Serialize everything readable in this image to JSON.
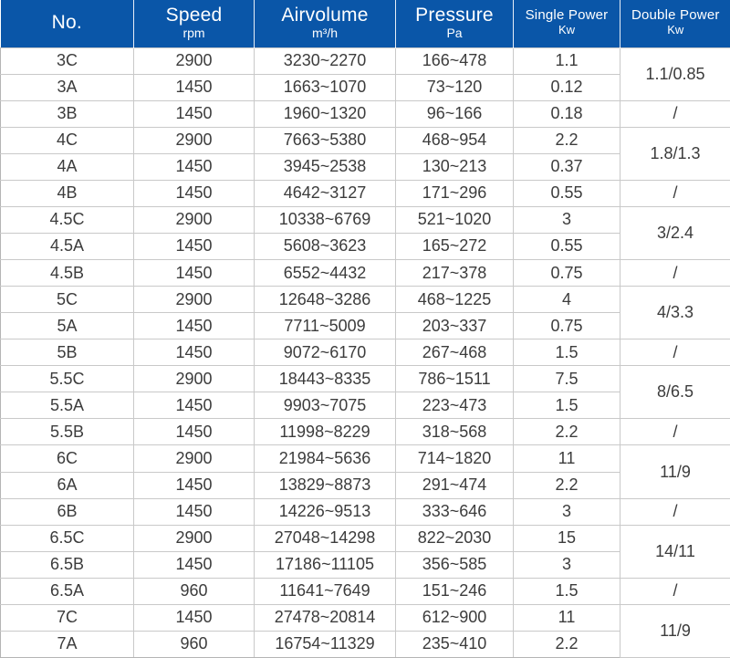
{
  "table": {
    "colors": {
      "header_background": "#0a56a8",
      "header_text": "#ffffff",
      "grid_border": "#c9c9c9",
      "body_text": "#3c3c3c"
    },
    "columns": [
      {
        "label": "No.",
        "sub": ""
      },
      {
        "label": "Speed",
        "sub": "rpm"
      },
      {
        "label": "Airvolume",
        "sub": "m³/h"
      },
      {
        "label": "Pressure",
        "sub": "Pa"
      },
      {
        "label": "Single Power",
        "sub": "Kw"
      },
      {
        "label": "Double Power",
        "sub": "Kw"
      }
    ],
    "rows": [
      {
        "no": "3C",
        "speed": "2900",
        "airvolume": "3230~2270",
        "pressure": "166~478",
        "single": "1.1",
        "double": "1.1/0.85",
        "dspan": 2
      },
      {
        "no": "3A",
        "speed": "1450",
        "airvolume": "1663~1070",
        "pressure": "73~120",
        "single": "0.12"
      },
      {
        "no": "3B",
        "speed": "1450",
        "airvolume": "1960~1320",
        "pressure": "96~166",
        "single": "0.18",
        "double": "/",
        "dspan": 1
      },
      {
        "no": "4C",
        "speed": "2900",
        "airvolume": "7663~5380",
        "pressure": "468~954",
        "single": "2.2",
        "double": "1.8/1.3",
        "dspan": 2
      },
      {
        "no": "4A",
        "speed": "1450",
        "airvolume": "3945~2538",
        "pressure": "130~213",
        "single": "0.37"
      },
      {
        "no": "4B",
        "speed": "1450",
        "airvolume": "4642~3127",
        "pressure": "171~296",
        "single": "0.55",
        "double": "/",
        "dspan": 1
      },
      {
        "no": "4.5C",
        "speed": "2900",
        "airvolume": "10338~6769",
        "pressure": "521~1020",
        "single": "3",
        "double": "3/2.4",
        "dspan": 2
      },
      {
        "no": "4.5A",
        "speed": "1450",
        "airvolume": "5608~3623",
        "pressure": "165~272",
        "single": "0.55"
      },
      {
        "no": "4.5B",
        "speed": "1450",
        "airvolume": "6552~4432",
        "pressure": "217~378",
        "single": "0.75",
        "double": "/",
        "dspan": 1
      },
      {
        "no": "5C",
        "speed": "2900",
        "airvolume": "12648~3286",
        "pressure": "468~1225",
        "single": "4",
        "double": "4/3.3",
        "dspan": 2
      },
      {
        "no": "5A",
        "speed": "1450",
        "airvolume": "7711~5009",
        "pressure": "203~337",
        "single": "0.75"
      },
      {
        "no": "5B",
        "speed": "1450",
        "airvolume": "9072~6170",
        "pressure": "267~468",
        "single": "1.5",
        "double": "/",
        "dspan": 1
      },
      {
        "no": "5.5C",
        "speed": "2900",
        "airvolume": "18443~8335",
        "pressure": "786~1511",
        "single": "7.5",
        "double": "8/6.5",
        "dspan": 2
      },
      {
        "no": "5.5A",
        "speed": "1450",
        "airvolume": "9903~7075",
        "pressure": "223~473",
        "single": "1.5"
      },
      {
        "no": "5.5B",
        "speed": "1450",
        "airvolume": "11998~8229",
        "pressure": "318~568",
        "single": "2.2",
        "double": "/",
        "dspan": 1
      },
      {
        "no": "6C",
        "speed": "2900",
        "airvolume": "21984~5636",
        "pressure": "714~1820",
        "single": "11",
        "double": "11/9",
        "dspan": 2
      },
      {
        "no": "6A",
        "speed": "1450",
        "airvolume": "13829~8873",
        "pressure": "291~474",
        "single": "2.2"
      },
      {
        "no": "6B",
        "speed": "1450",
        "airvolume": "14226~9513",
        "pressure": "333~646",
        "single": "3",
        "double": "/",
        "dspan": 1
      },
      {
        "no": "6.5C",
        "speed": "2900",
        "airvolume": "27048~14298",
        "pressure": "822~2030",
        "single": "15",
        "double": "14/11",
        "dspan": 2
      },
      {
        "no": "6.5B",
        "speed": "1450",
        "airvolume": "17186~11105",
        "pressure": "356~585",
        "single": "3"
      },
      {
        "no": "6.5A",
        "speed": "960",
        "airvolume": "11641~7649",
        "pressure": "151~246",
        "single": "1.5",
        "double": "/",
        "dspan": 1
      },
      {
        "no": "7C",
        "speed": "1450",
        "airvolume": "27478~20814",
        "pressure": "612~900",
        "single": "11",
        "double": "11/9",
        "dspan": 2
      },
      {
        "no": "7A",
        "speed": "960",
        "airvolume": "16754~11329",
        "pressure": "235~410",
        "single": "2.2"
      }
    ]
  }
}
